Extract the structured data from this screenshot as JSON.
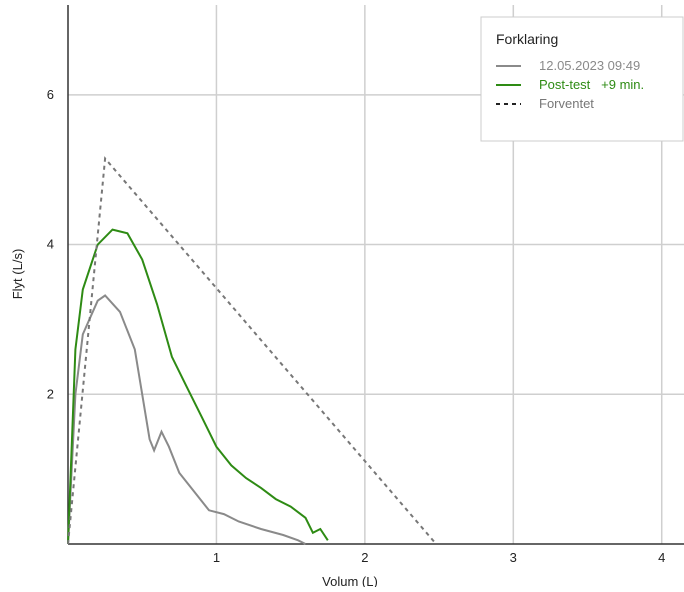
{
  "chart_data": {
    "type": "line",
    "x_label": "Volum (L)",
    "y_label": "Flyt (L/s)",
    "xlim": [
      0,
      4.15
    ],
    "ylim": [
      0,
      7.2
    ],
    "xticks": [
      1,
      2,
      3,
      4
    ],
    "yticks": [
      2,
      4,
      6
    ],
    "grid": true,
    "legend": {
      "title": "Forklaring",
      "position": "upper right"
    },
    "series": [
      {
        "name": "12.05.2023 09:49",
        "color": "#8a8a8a",
        "style": "solid",
        "x": [
          0,
          0.05,
          0.1,
          0.2,
          0.25,
          0.35,
          0.45,
          0.5,
          0.55,
          0.58,
          0.63,
          0.68,
          0.75,
          0.85,
          0.95,
          1.05,
          1.15,
          1.3,
          1.45,
          1.55,
          1.6
        ],
        "values": [
          0,
          2.0,
          2.8,
          3.25,
          3.32,
          3.1,
          2.6,
          2.0,
          1.4,
          1.25,
          1.5,
          1.3,
          0.95,
          0.7,
          0.45,
          0.4,
          0.3,
          0.2,
          0.12,
          0.05,
          0
        ]
      },
      {
        "name": "Post-test   +9 min.",
        "color": "#2e8b14",
        "style": "solid",
        "x": [
          0,
          0.05,
          0.1,
          0.2,
          0.3,
          0.4,
          0.5,
          0.6,
          0.7,
          0.8,
          0.9,
          1.0,
          1.1,
          1.2,
          1.3,
          1.4,
          1.5,
          1.6,
          1.65,
          1.7,
          1.75
        ],
        "values": [
          0,
          2.6,
          3.4,
          4.0,
          4.2,
          4.15,
          3.8,
          3.2,
          2.5,
          2.1,
          1.7,
          1.3,
          1.05,
          0.88,
          0.75,
          0.6,
          0.5,
          0.35,
          0.15,
          0.2,
          0.05
        ]
      },
      {
        "name": "Forventet",
        "color": "#777777",
        "style": "dashed",
        "x": [
          0,
          0.25,
          2.48
        ],
        "values": [
          0,
          5.15,
          0
        ]
      }
    ]
  }
}
